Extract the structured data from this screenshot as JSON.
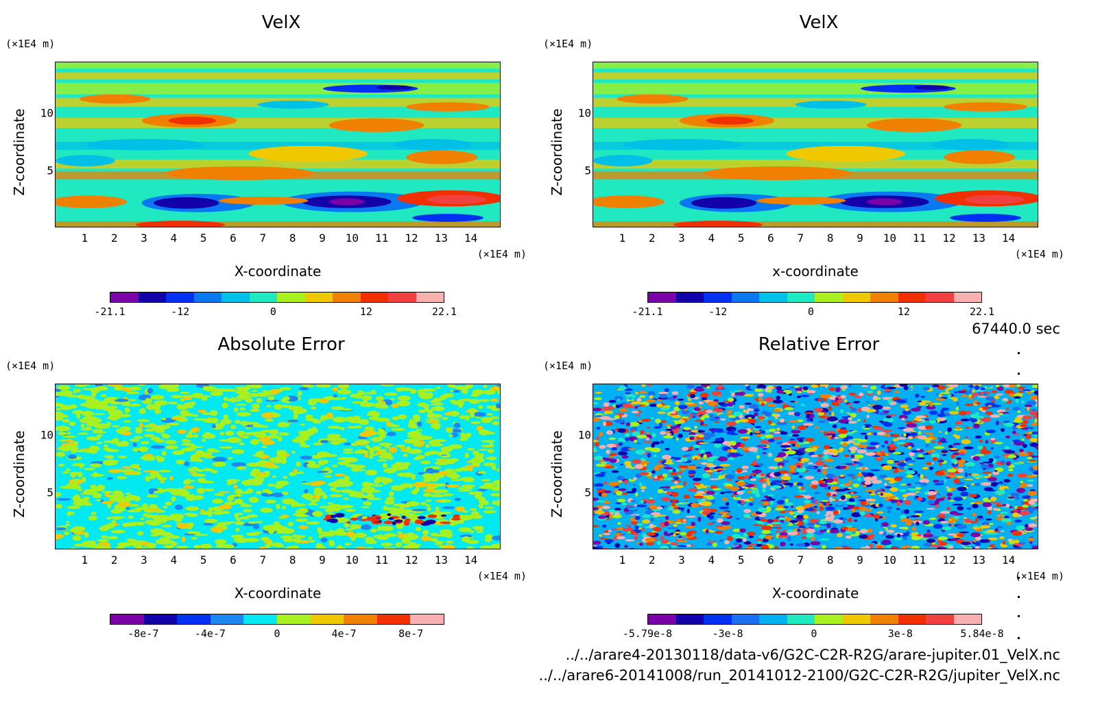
{
  "palette_velx": [
    "#7b00a8",
    "#1400a8",
    "#0030f0",
    "#0a78f0",
    "#00c0e8",
    "#20e8c0",
    "#a8f020",
    "#f0c800",
    "#f08000",
    "#f03000",
    "#f04040",
    "#f8b0b0"
  ],
  "palette_abs": [
    "#7b00a8",
    "#1400a8",
    "#0030f0",
    "#1a88f0",
    "#00e8f0",
    "#a8f020",
    "#f0c800",
    "#f08000",
    "#f03000",
    "#f8b0b0"
  ],
  "palette_rel": [
    "#7b00a8",
    "#1400a8",
    "#0030f0",
    "#1a70f0",
    "#00b0f0",
    "#20e8c0",
    "#a8f020",
    "#f0c800",
    "#f08000",
    "#f03000",
    "#f04040",
    "#f8b0b0"
  ],
  "x_ticks": [
    "1",
    "2",
    "3",
    "4",
    "5",
    "6",
    "7",
    "8",
    "9",
    "10",
    "11",
    "12",
    "13",
    "14"
  ],
  "y_ticks": [
    "5",
    "10"
  ],
  "unit_y": "(×1E4 m)",
  "unit_x": "(×1E4 m)",
  "timestamp": "67440.0 sec",
  "paths": [
    "../../arare4-20130118/data-v6/G2C-C2R-R2G/arare-jupiter.01_VelX.nc",
    "../../arare6-20141008/run_20141012-2100/G2C-C2R-R2G/jupiter_VelX.nc"
  ],
  "chart_data": [
    {
      "type": "heatmap",
      "title": "VelX",
      "xlabel": "X-coordinate",
      "ylabel": "Z-coordinate",
      "xlim": [
        0,
        15
      ],
      "ylim": [
        0,
        14.5
      ],
      "colorbar": {
        "min": -21.1,
        "max": 22.1,
        "labels": [
          "-21.1",
          "-12",
          "0",
          "12",
          "22.1"
        ],
        "label_values": [
          -21.1,
          -12,
          0,
          12,
          22.1
        ]
      }
    },
    {
      "type": "heatmap",
      "title": "VelX",
      "xlabel": "x-coordinate",
      "ylabel": "Z-coordinate",
      "xlim": [
        0,
        15
      ],
      "ylim": [
        0,
        14.5
      ],
      "colorbar": {
        "min": -21.1,
        "max": 22.1,
        "labels": [
          "-21.1",
          "-12",
          "0",
          "12",
          "22.1"
        ],
        "label_values": [
          -21.1,
          -12,
          0,
          12,
          22.1
        ]
      }
    },
    {
      "type": "heatmap",
      "title": "Absolute Error",
      "xlabel": "X-coordinate",
      "ylabel": "Z-coordinate",
      "xlim": [
        0,
        15
      ],
      "ylim": [
        0,
        14.5
      ],
      "colorbar": {
        "min": -1e-06,
        "max": 1e-06,
        "labels": [
          "-8e-7",
          "-4e-7",
          "0",
          "4e-7",
          "8e-7"
        ],
        "label_values": [
          -8e-07,
          -4e-07,
          0,
          4e-07,
          8e-07
        ]
      }
    },
    {
      "type": "heatmap",
      "title": "Relative Error",
      "xlabel": "X-coordinate",
      "ylabel": "Z-coordinate",
      "xlim": [
        0,
        15
      ],
      "ylim": [
        0,
        14.5
      ],
      "colorbar": {
        "min": -5.79e-08,
        "max": 5.84e-08,
        "labels": [
          "-5.79e-8",
          "-3e-8",
          "0",
          "3e-8",
          "5.84e-8"
        ],
        "label_values": [
          -5.79e-08,
          -3e-08,
          0,
          3e-08,
          5.84e-08
        ]
      }
    }
  ]
}
